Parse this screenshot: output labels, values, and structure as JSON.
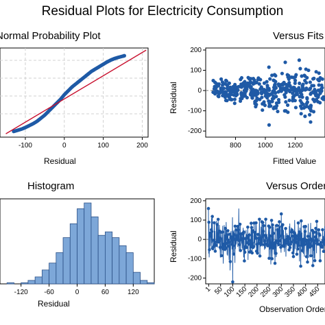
{
  "page": {
    "title": "Residual Plots for Electricity Consumption"
  },
  "colors": {
    "point": "#1f5aa6",
    "fit_line": "#c8102e",
    "bar_fill": "#7da7d8",
    "bar_stroke": "#2a4f86",
    "grid": "#d0d0d0"
  },
  "chart_data": [
    {
      "type": "scatter",
      "title": "Normal Probability Plot",
      "xlabel": "Residual",
      "ylabel": "",
      "x_ticks": [
        "-100",
        "0",
        "100",
        "200"
      ],
      "xlim": [
        -165,
        215
      ],
      "grid": true,
      "points_description": "residuals vs normal quantile",
      "x": [
        -130,
        -120,
        -110,
        -100,
        -90,
        -80,
        -70,
        -60,
        -50,
        -40,
        -30,
        -20,
        -10,
        0,
        10,
        20,
        30,
        40,
        50,
        60,
        70,
        80,
        90,
        100,
        110,
        120,
        130,
        140,
        150,
        155
      ],
      "y_pct": [
        2,
        3.5,
        5,
        7,
        9.5,
        12,
        15,
        19,
        23,
        28,
        33,
        38,
        43,
        49,
        54,
        59,
        63,
        67,
        71,
        75,
        79,
        82,
        85,
        88,
        91,
        93.5,
        95.5,
        97,
        98.3,
        99
      ]
    },
    {
      "type": "scatter",
      "title": "Versus Fits",
      "xlabel": "Fitted Value",
      "ylabel": "Residual",
      "x_ticks": [
        "800",
        "1000",
        "1200"
      ],
      "y_ticks": [
        "200",
        "100",
        "0",
        "-100",
        "-200"
      ],
      "xlim": [
        600,
        1400
      ],
      "ylim": [
        -230,
        210
      ],
      "reference_line": 0
    },
    {
      "type": "bar",
      "title": "Histogram",
      "xlabel": "Residual",
      "ylabel": "",
      "x_ticks": [
        "-120",
        "-60",
        "0",
        "60",
        "120"
      ],
      "bin_edges": [
        -165,
        -150,
        -135,
        -120,
        -105,
        -90,
        -75,
        -60,
        -45,
        -30,
        -15,
        0,
        15,
        30,
        45,
        60,
        75,
        90,
        105,
        120,
        135,
        150,
        165
      ],
      "counts": [
        0,
        1,
        0,
        1,
        3,
        6,
        12,
        18,
        27,
        40,
        52,
        65,
        70,
        58,
        42,
        45,
        40,
        33,
        27,
        10,
        3,
        1
      ],
      "xlim": [
        -165,
        165
      ]
    },
    {
      "type": "line",
      "title": "Versus Order",
      "xlabel": "Observation Order",
      "ylabel": "Residual",
      "x_ticks": [
        "1",
        "50",
        "100",
        "150",
        "200",
        "250",
        "300",
        "350",
        "400",
        "450"
      ],
      "y_ticks": [
        "200",
        "100",
        "0",
        "-100",
        "-200"
      ],
      "ylim": [
        -230,
        210
      ],
      "reference_line": 0
    }
  ]
}
